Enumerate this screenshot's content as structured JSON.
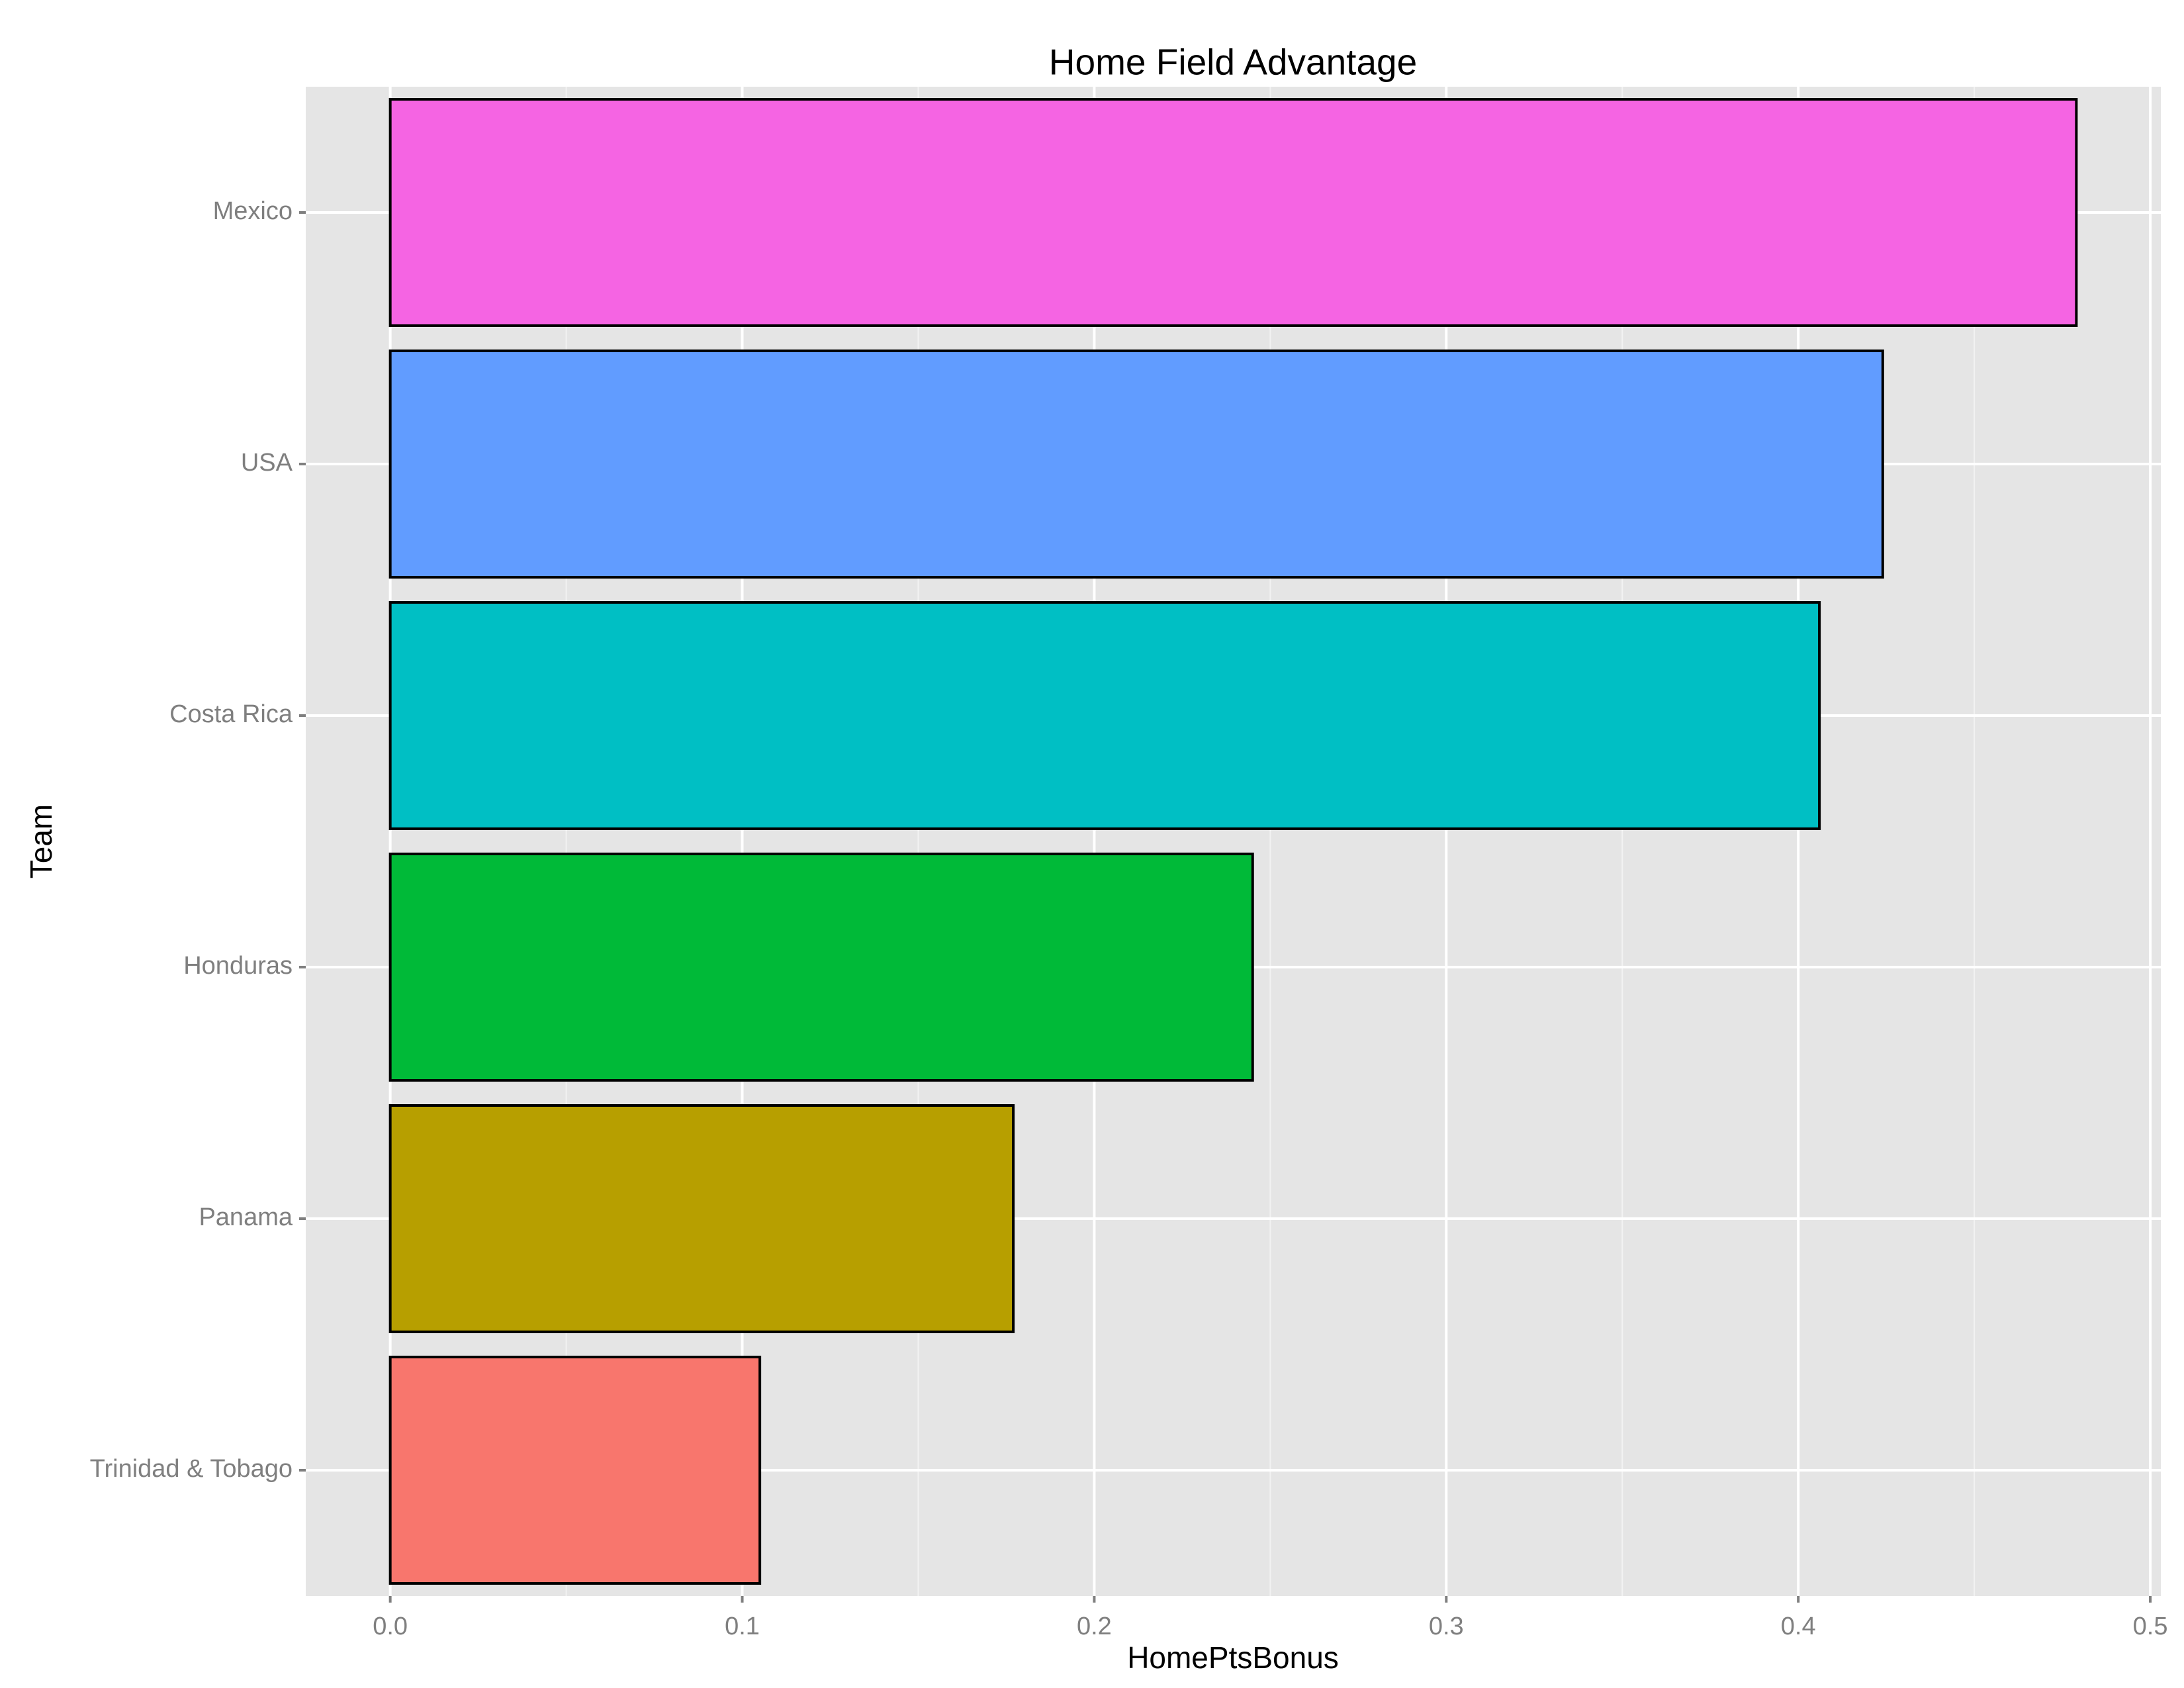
{
  "chart_data": {
    "type": "bar",
    "orientation": "horizontal",
    "title": "Home Field Advantage",
    "x_label": "HomePtsBonus",
    "y_label": "Team",
    "categories": [
      "Mexico",
      "USA",
      "Costa Rica",
      "Honduras",
      "Panama",
      "Trinidad & Tobago"
    ],
    "values": [
      0.479,
      0.424,
      0.406,
      0.245,
      0.177,
      0.105
    ],
    "colors": [
      "#f564e3",
      "#619cff",
      "#00bfc4",
      "#00ba38",
      "#b79f00",
      "#f8766d"
    ],
    "xlim": [
      -0.024,
      0.503
    ],
    "xticks": [
      {
        "value": 0,
        "label": "0.0"
      },
      0.1,
      0.2,
      0.3,
      0.4,
      0.5
    ],
    "grid": true
  }
}
